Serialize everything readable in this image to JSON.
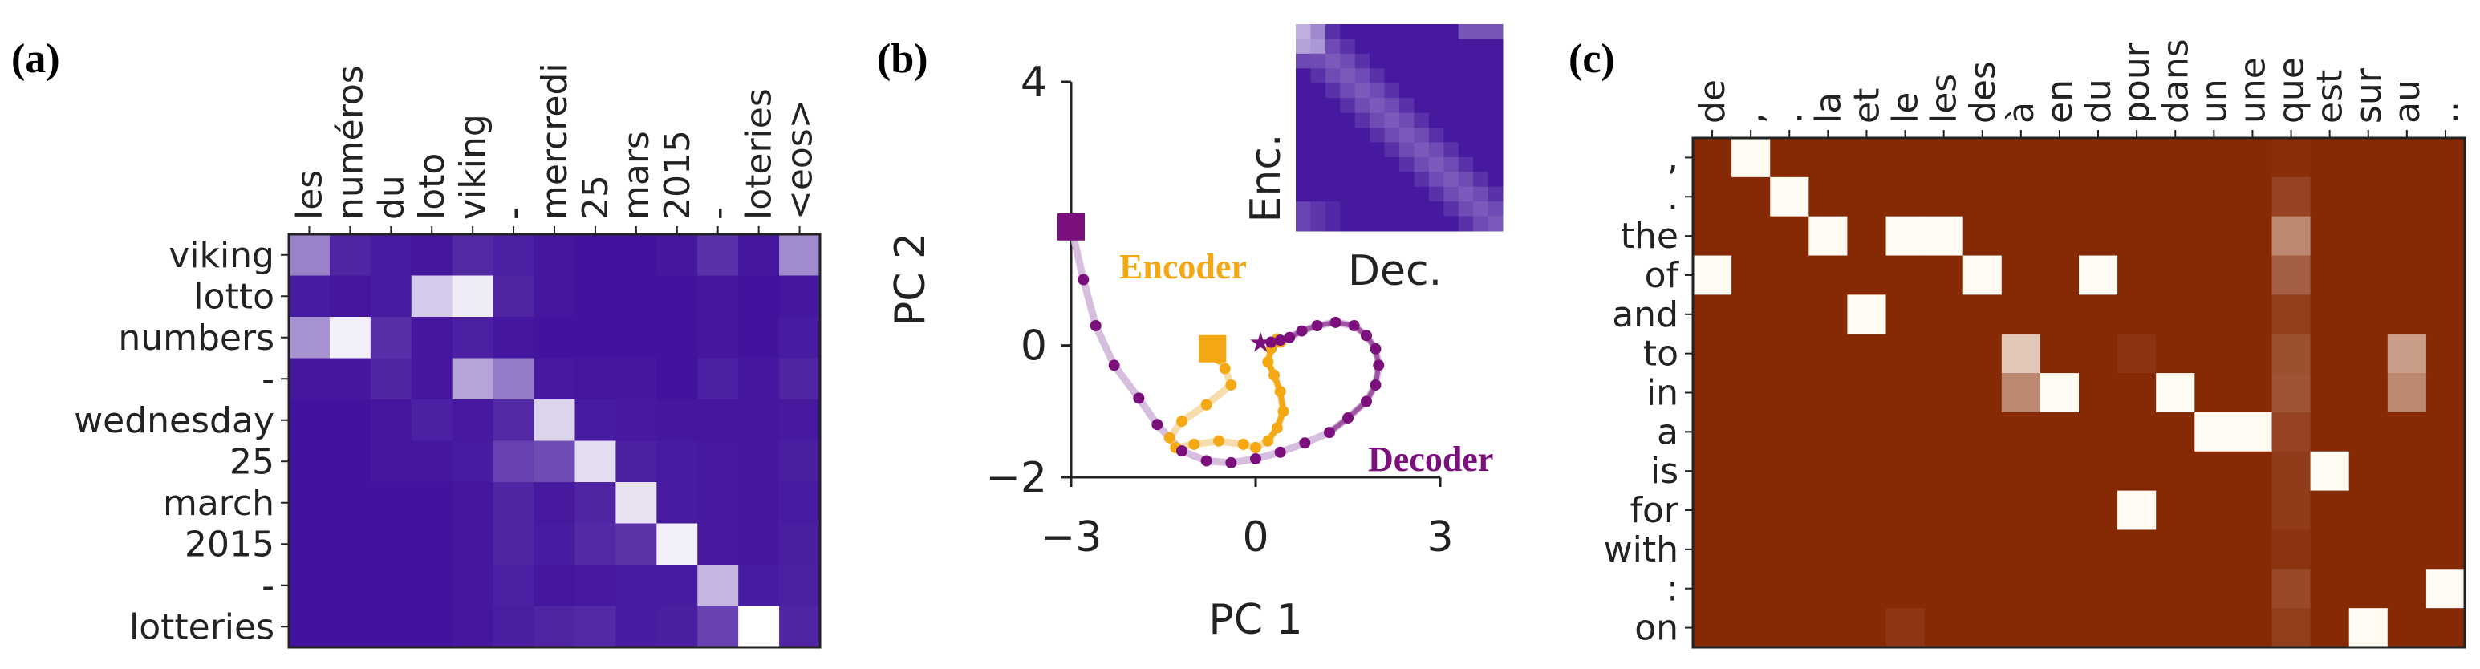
{
  "panel_labels": [
    "(a)",
    "(b)",
    "(c)"
  ],
  "colors": {
    "purple_low": "#3c0d9a",
    "purple_high": "#ffffff",
    "brown_low": "#862a06",
    "brown_high": "#fffbf2",
    "encoder": "#f4a813",
    "encoder_light": "#f6d7a0",
    "decoder": "#7b0f7b",
    "decoder_light": "#cfb3d8"
  },
  "chart_data": [
    {
      "type": "heatmap",
      "panel": "(a)",
      "x_labels": [
        "les",
        "numéros",
        "du",
        "loto",
        "viking",
        "-",
        "mercredi",
        "25",
        "mars",
        "2015",
        "-",
        "loteries",
        "<eos>"
      ],
      "y_labels": [
        "viking",
        "lotto",
        "numbers",
        "-",
        "wednesday",
        "25",
        "march",
        "2015",
        "-",
        "lotteries"
      ],
      "colormap": "purples",
      "values": [
        [
          0.48,
          0.1,
          0.06,
          0.04,
          0.12,
          0.08,
          0.04,
          0.03,
          0.03,
          0.04,
          0.15,
          0.04,
          0.52
        ],
        [
          0.06,
          0.04,
          0.06,
          0.78,
          0.92,
          0.1,
          0.04,
          0.03,
          0.03,
          0.03,
          0.04,
          0.03,
          0.04
        ],
        [
          0.55,
          0.94,
          0.14,
          0.04,
          0.08,
          0.04,
          0.03,
          0.03,
          0.03,
          0.03,
          0.04,
          0.03,
          0.06
        ],
        [
          0.04,
          0.04,
          0.1,
          0.04,
          0.62,
          0.45,
          0.05,
          0.04,
          0.04,
          0.03,
          0.08,
          0.04,
          0.1
        ],
        [
          0.03,
          0.03,
          0.04,
          0.08,
          0.05,
          0.12,
          0.82,
          0.06,
          0.05,
          0.04,
          0.04,
          0.04,
          0.05
        ],
        [
          0.03,
          0.03,
          0.04,
          0.04,
          0.06,
          0.22,
          0.26,
          0.86,
          0.08,
          0.06,
          0.05,
          0.04,
          0.07
        ],
        [
          0.03,
          0.03,
          0.03,
          0.03,
          0.04,
          0.1,
          0.05,
          0.1,
          0.88,
          0.06,
          0.05,
          0.04,
          0.06
        ],
        [
          0.03,
          0.03,
          0.03,
          0.03,
          0.04,
          0.1,
          0.06,
          0.12,
          0.16,
          0.94,
          0.05,
          0.04,
          0.07
        ],
        [
          0.03,
          0.03,
          0.03,
          0.03,
          0.04,
          0.08,
          0.04,
          0.05,
          0.06,
          0.06,
          0.7,
          0.06,
          0.08
        ],
        [
          0.03,
          0.03,
          0.03,
          0.03,
          0.04,
          0.07,
          0.1,
          0.12,
          0.06,
          0.07,
          0.22,
          1.0,
          0.1
        ]
      ]
    },
    {
      "type": "scatter",
      "panel": "(b)",
      "xlabel": "PC 1",
      "ylabel": "PC 2",
      "xlim": [
        -3,
        3
      ],
      "ylim": [
        -2,
        4
      ],
      "x_ticks": [
        "−3",
        "0",
        "3"
      ],
      "y_ticks": [
        "4",
        "0",
        "−2"
      ],
      "x_tick_values": [
        -3,
        0,
        3
      ],
      "y_tick_values": [
        4,
        0,
        -2
      ],
      "series": [
        {
          "name": "Encoder",
          "x": [
            -0.7,
            -0.6,
            -0.5,
            -0.4,
            -0.8,
            -1.2,
            -1.4,
            -1.3,
            -1.0,
            -0.6,
            -0.2,
            0.0,
            0.2,
            0.35,
            0.45,
            0.4,
            0.3,
            0.2,
            0.25,
            0.35,
            0.4,
            0.3
          ],
          "y": [
            -0.05,
            -0.2,
            -0.35,
            -0.6,
            -0.9,
            -1.15,
            -1.4,
            -1.55,
            -1.5,
            -1.45,
            -1.5,
            -1.55,
            -1.45,
            -1.25,
            -1.0,
            -0.7,
            -0.45,
            -0.25,
            -0.05,
            0.1,
            0.05,
            0.05
          ]
        },
        {
          "name": "Decoder",
          "x": [
            -3.0,
            -2.8,
            -2.6,
            -2.3,
            -1.9,
            -1.6,
            -1.2,
            -0.8,
            -0.4,
            0.0,
            0.4,
            0.8,
            1.2,
            1.5,
            1.8,
            1.95,
            2.0,
            1.95,
            1.8,
            1.6,
            1.3,
            1.0,
            0.75,
            0.55,
            0.4,
            0.25
          ],
          "y": [
            1.8,
            1.0,
            0.3,
            -0.3,
            -0.8,
            -1.2,
            -1.6,
            -1.75,
            -1.78,
            -1.72,
            -1.62,
            -1.48,
            -1.32,
            -1.1,
            -0.85,
            -0.6,
            -0.3,
            -0.05,
            0.15,
            0.3,
            0.35,
            0.3,
            0.22,
            0.12,
            0.08,
            0.05
          ]
        }
      ],
      "markers": {
        "encoder_start": [
          -0.7,
          -0.05
        ],
        "decoder_start": [
          -3.0,
          1.8
        ],
        "star": [
          0.08,
          0.05
        ]
      },
      "text_labels": {
        "encoder": "Encoder",
        "decoder": "Decoder",
        "dec_short": "Dec.",
        "enc_short": "Enc."
      },
      "inset_colormap": "purples"
    },
    {
      "type": "heatmap",
      "panel": "(c)",
      "x_labels": [
        "de",
        ",",
        ".",
        "la",
        "et",
        "le",
        "les",
        "des",
        "à",
        "en",
        "du",
        "pour",
        "dans",
        "un",
        "une",
        "que",
        "est",
        "sur",
        "au",
        ".."
      ],
      "y_labels": [
        ",",
        ".",
        "the",
        "of",
        "and",
        "to",
        "in",
        "a",
        "is",
        "for",
        "with",
        ":",
        "on"
      ],
      "colormap": "oranges_r",
      "values": [
        [
          0,
          1,
          0,
          0,
          0,
          0,
          0,
          0,
          0,
          0,
          0,
          0,
          0,
          0,
          0,
          0.02,
          0,
          0,
          0,
          0
        ],
        [
          0,
          0,
          1,
          0,
          0,
          0,
          0,
          0,
          0,
          0,
          0,
          0,
          0,
          0,
          0,
          0.12,
          0,
          0,
          0,
          0
        ],
        [
          0,
          0,
          0,
          1,
          0,
          1,
          1,
          0,
          0,
          0,
          0,
          0,
          0,
          0,
          0,
          0.45,
          0,
          0,
          0,
          0
        ],
        [
          1,
          0,
          0,
          0,
          0,
          0,
          0,
          1,
          0,
          0,
          1,
          0,
          0,
          0,
          0,
          0.25,
          0,
          0,
          0,
          0
        ],
        [
          0,
          0,
          0,
          0,
          1,
          0,
          0,
          0,
          0,
          0,
          0,
          0,
          0,
          0,
          0,
          0.1,
          0,
          0,
          0,
          0
        ],
        [
          0,
          0,
          0,
          0,
          0,
          0,
          0,
          0,
          0.75,
          0,
          0,
          0.05,
          0,
          0,
          0,
          0.18,
          0,
          0,
          0.55,
          0
        ],
        [
          0,
          0,
          0,
          0,
          0,
          0,
          0,
          0,
          0.45,
          1,
          0,
          0,
          1,
          0,
          0,
          0.2,
          0,
          0,
          0.45,
          0
        ],
        [
          0,
          0,
          0,
          0,
          0,
          0,
          0,
          0,
          0,
          0,
          0,
          0,
          0,
          1,
          1,
          0.12,
          0,
          0,
          0,
          0
        ],
        [
          0,
          0,
          0,
          0,
          0,
          0,
          0,
          0,
          0,
          0,
          0,
          0,
          0,
          0,
          0,
          0.08,
          1,
          0,
          0,
          0
        ],
        [
          0,
          0,
          0,
          0,
          0,
          0,
          0,
          0,
          0,
          0,
          0,
          1,
          0,
          0,
          0,
          0.08,
          0,
          0,
          0,
          0
        ],
        [
          0,
          0,
          0,
          0,
          0,
          0,
          0,
          0,
          0,
          0,
          0,
          0,
          0,
          0,
          0,
          0.05,
          0,
          0,
          0,
          0
        ],
        [
          0,
          0,
          0,
          0,
          0,
          0,
          0,
          0,
          0,
          0,
          0,
          0,
          0,
          0,
          0,
          0.15,
          0,
          0,
          0,
          1
        ],
        [
          0,
          0,
          0,
          0,
          0,
          0.06,
          0,
          0,
          0,
          0,
          0,
          0,
          0,
          0,
          0,
          0.1,
          0,
          1,
          0,
          0
        ]
      ]
    }
  ]
}
